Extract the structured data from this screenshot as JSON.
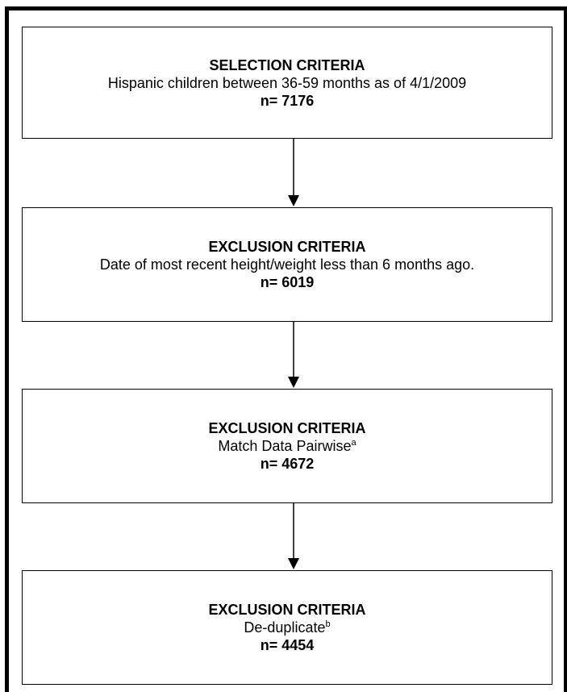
{
  "steps": [
    {
      "heading": "SELECTION CRITERIA",
      "description": "Hispanic children between 36-59 months as of 4/1/2009",
      "footnote": "",
      "count": "n= 7176"
    },
    {
      "heading": "EXCLUSION CRITERIA",
      "description": "Date of most recent height/weight less than 6 months ago.",
      "footnote": "",
      "count": "n= 6019"
    },
    {
      "heading": "EXCLUSION CRITERIA",
      "description": "Match Data Pairwise",
      "footnote": "a",
      "count": "n= 4672"
    },
    {
      "heading": "EXCLUSION CRITERIA",
      "description": "De-duplicate",
      "footnote": "b",
      "count": "n= 4454"
    }
  ]
}
